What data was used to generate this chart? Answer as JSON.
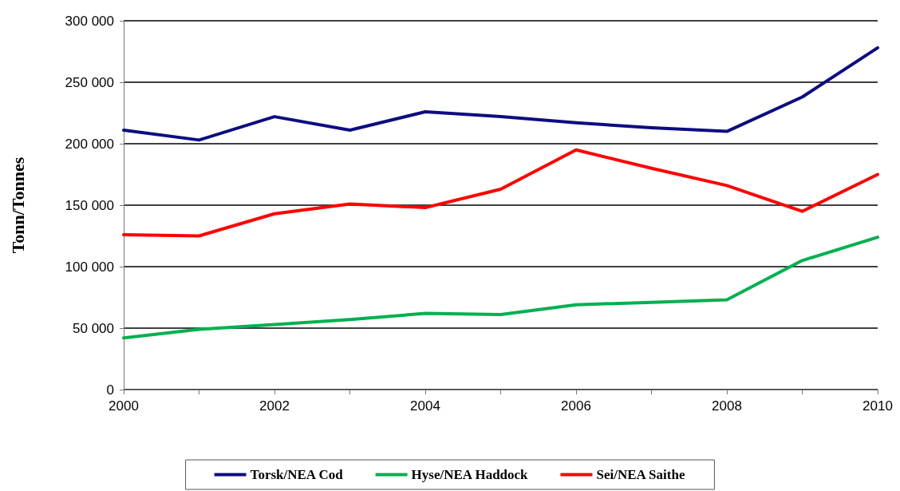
{
  "chart_data": {
    "type": "line",
    "ylabel": "Tonn/Tonnes",
    "x": [
      2000,
      2001,
      2002,
      2003,
      2004,
      2005,
      2006,
      2007,
      2008,
      2009,
      2010
    ],
    "series": [
      {
        "name": "Torsk/NEA Cod",
        "color": "#0d0d80",
        "values": [
          211000,
          203000,
          222000,
          211000,
          226000,
          222000,
          217000,
          213000,
          210000,
          238000,
          278000
        ]
      },
      {
        "name": "Hyse/NEA Haddock",
        "color": "#00b050",
        "values": [
          42000,
          49000,
          53000,
          57000,
          62000,
          61000,
          69000,
          71000,
          73000,
          105000,
          124000
        ]
      },
      {
        "name": "Sei/NEA Saithe",
        "color": "#ff0000",
        "values": [
          126000,
          125000,
          143000,
          151000,
          148000,
          163000,
          195000,
          180000,
          166000,
          145000,
          175000
        ]
      }
    ],
    "xlim": [
      2000,
      2010
    ],
    "xticks": [
      2000,
      {
        "value": 2001,
        "label": null
      },
      2002,
      {
        "value": 2003,
        "label": null
      },
      2004,
      {
        "value": 2005,
        "label": null
      },
      2006,
      {
        "value": 2007,
        "label": null
      },
      2008,
      {
        "value": 2009,
        "label": null
      },
      2010
    ],
    "ylim": [
      0,
      300000
    ],
    "yticks": [
      0,
      {
        "value": 50000,
        "label": "50 000"
      },
      {
        "value": 100000,
        "label": "100 000"
      },
      {
        "value": 150000,
        "label": "150 000"
      },
      {
        "value": 200000,
        "label": "200 000"
      },
      {
        "value": 250000,
        "label": "250 000"
      },
      {
        "value": 300000,
        "label": "300 000"
      }
    ],
    "grid": "y",
    "legend": "bottom",
    "marker": "none",
    "line_style": "solid"
  }
}
